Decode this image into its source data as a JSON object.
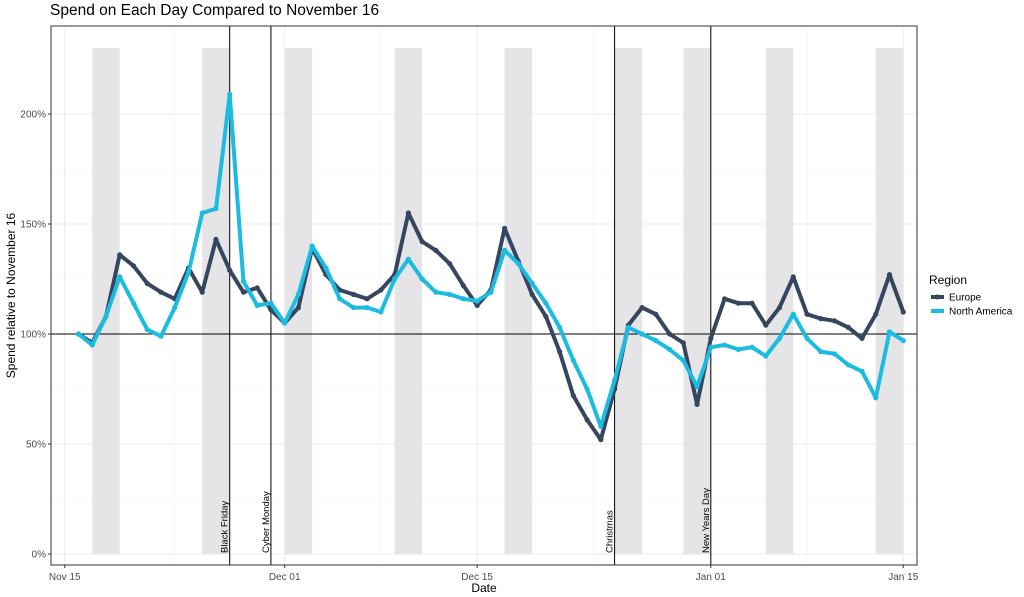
{
  "chart_data": {
    "type": "line",
    "title": "Spend on Each Day Compared to November 16",
    "xlabel": "Date",
    "ylabel": "Spend relative to November 16",
    "xlim": [
      "2015-11-14",
      "2016-01-16"
    ],
    "ylim": [
      -5,
      240
    ],
    "x_ticks": [
      {
        "date": "2015-11-15",
        "label": "Nov 15"
      },
      {
        "date": "2015-12-01",
        "label": "Dec 01"
      },
      {
        "date": "2015-12-15",
        "label": "Dec 15"
      },
      {
        "date": "2016-01-01",
        "label": "Jan 01"
      },
      {
        "date": "2016-01-15",
        "label": "Jan 15"
      }
    ],
    "y_ticks": [
      {
        "value": 0,
        "label": "0%"
      },
      {
        "value": 50,
        "label": "50%"
      },
      {
        "value": 100,
        "label": "100%"
      },
      {
        "value": 150,
        "label": "150%"
      },
      {
        "value": 200,
        "label": "200%"
      }
    ],
    "grid": true,
    "reference_line": 100,
    "weekend_shading": [
      [
        "2015-11-17",
        "2015-11-19"
      ],
      [
        "2015-11-25",
        "2015-11-27"
      ],
      [
        "2015-12-01",
        "2015-12-03"
      ],
      [
        "2015-12-09",
        "2015-12-11"
      ],
      [
        "2015-12-17",
        "2015-12-19"
      ],
      [
        "2015-12-25",
        "2015-12-27"
      ],
      [
        "2015-12-30",
        "2016-01-01"
      ],
      [
        "2016-01-05",
        "2016-01-07"
      ],
      [
        "2016-01-13",
        "2016-01-15"
      ]
    ],
    "shading_top": 230,
    "events": [
      {
        "date": "2015-11-27",
        "label": "Black Friday"
      },
      {
        "date": "2015-11-30",
        "label": "Cyber Monday"
      },
      {
        "date": "2015-12-25",
        "label": "Christmas"
      },
      {
        "date": "2016-01-01",
        "label": "New Years Day"
      }
    ],
    "legend": {
      "title": "Region",
      "position": "right"
    },
    "x": [
      "2015-11-16",
      "2015-11-17",
      "2015-11-18",
      "2015-11-19",
      "2015-11-20",
      "2015-11-21",
      "2015-11-22",
      "2015-11-23",
      "2015-11-24",
      "2015-11-25",
      "2015-11-26",
      "2015-11-27",
      "2015-11-28",
      "2015-11-29",
      "2015-11-30",
      "2015-12-01",
      "2015-12-02",
      "2015-12-03",
      "2015-12-04",
      "2015-12-05",
      "2015-12-06",
      "2015-12-07",
      "2015-12-08",
      "2015-12-09",
      "2015-12-10",
      "2015-12-11",
      "2015-12-12",
      "2015-12-13",
      "2015-12-14",
      "2015-12-15",
      "2015-12-16",
      "2015-12-17",
      "2015-12-18",
      "2015-12-19",
      "2015-12-20",
      "2015-12-21",
      "2015-12-22",
      "2015-12-23",
      "2015-12-24",
      "2015-12-25",
      "2015-12-26",
      "2015-12-27",
      "2015-12-28",
      "2015-12-29",
      "2015-12-30",
      "2015-12-31",
      "2016-01-01",
      "2016-01-02",
      "2016-01-03",
      "2016-01-04",
      "2016-01-05",
      "2016-01-06",
      "2016-01-07",
      "2016-01-08",
      "2016-01-09",
      "2016-01-10",
      "2016-01-11",
      "2016-01-12",
      "2016-01-13",
      "2016-01-14",
      "2016-01-15"
    ],
    "series": [
      {
        "name": "Europe",
        "color": "#36465f",
        "values": [
          100,
          96,
          108,
          136,
          131,
          123,
          119,
          116,
          130,
          119,
          143,
          129,
          119,
          121,
          111,
          105,
          112,
          139,
          127,
          120,
          118,
          116,
          120,
          127,
          155,
          142,
          138,
          132,
          122,
          113,
          120,
          148,
          133,
          118,
          108,
          92,
          72,
          61,
          52,
          75,
          104,
          112,
          109,
          100,
          96,
          68,
          98,
          116,
          114,
          114,
          104,
          112,
          126,
          109,
          107,
          106,
          103,
          98,
          109,
          127,
          110
        ]
      },
      {
        "name": "North America",
        "color": "#1cbbe0",
        "values": [
          100,
          95,
          108,
          126,
          114,
          102,
          99,
          112,
          128,
          155,
          157,
          209,
          124,
          113,
          114,
          105,
          118,
          140,
          130,
          116,
          112,
          112,
          110,
          125,
          134,
          125,
          119,
          118,
          116,
          115,
          119,
          138,
          132,
          123,
          114,
          103,
          88,
          75,
          58,
          79,
          103,
          100,
          97,
          93,
          88,
          76,
          94,
          95,
          93,
          94,
          90,
          98,
          109,
          98,
          92,
          91,
          86,
          83,
          71,
          101,
          97
        ]
      }
    ]
  }
}
